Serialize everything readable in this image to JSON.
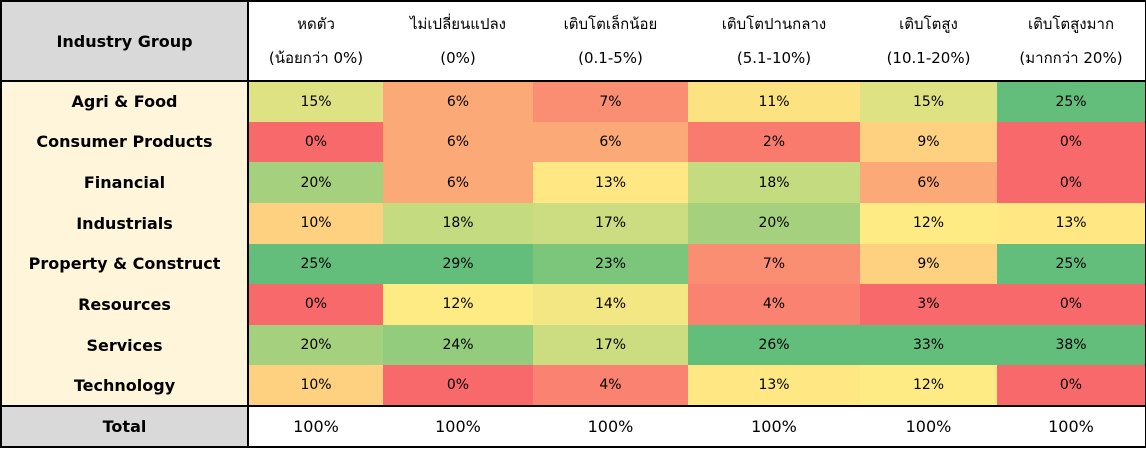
{
  "chart_data": {
    "type": "heatmap",
    "row_header": "Industry Group",
    "columns": [
      {
        "label": "หดตัว",
        "range": "(น้อยกว่า 0%)"
      },
      {
        "label": "ไม่เปลี่ยนแปลง",
        "range": "(0%)"
      },
      {
        "label": "เติบโตเล็กน้อย",
        "range": "(0.1-5%)"
      },
      {
        "label": "เติบโตปานกลาง",
        "range": "(5.1-10%)"
      },
      {
        "label": "เติบโตสูง",
        "range": "(10.1-20%)"
      },
      {
        "label": "เติบโตสูงมาก",
        "range": "(มากกว่า 20%)"
      }
    ],
    "rows": [
      {
        "label": "Agri & Food",
        "values": [
          "15%",
          "6%",
          "7%",
          "11%",
          "15%",
          "25%"
        ]
      },
      {
        "label": "Consumer Products",
        "values": [
          "0%",
          "6%",
          "6%",
          "2%",
          "9%",
          "0%"
        ]
      },
      {
        "label": "Financial",
        "values": [
          "20%",
          "6%",
          "13%",
          "18%",
          "6%",
          "0%"
        ]
      },
      {
        "label": "Industrials",
        "values": [
          "10%",
          "18%",
          "17%",
          "20%",
          "12%",
          "13%"
        ]
      },
      {
        "label": "Property & Construct",
        "values": [
          "25%",
          "29%",
          "23%",
          "7%",
          "9%",
          "25%"
        ]
      },
      {
        "label": "Resources",
        "values": [
          "0%",
          "12%",
          "14%",
          "4%",
          "3%",
          "0%"
        ]
      },
      {
        "label": "Services",
        "values": [
          "20%",
          "24%",
          "17%",
          "26%",
          "33%",
          "38%"
        ]
      },
      {
        "label": "Technology",
        "values": [
          "10%",
          "0%",
          "4%",
          "13%",
          "12%",
          "0%"
        ]
      }
    ],
    "total": {
      "label": "Total",
      "values": [
        "100%",
        "100%",
        "100%",
        "100%",
        "100%",
        "100%"
      ]
    },
    "colors": {
      "0%": "#f8696b",
      "2%": "#f97b6e",
      "3%": "#f8696b",
      "4%": "#f98370",
      "6%": "#fbaa77",
      "7%": "#fa8e72",
      "9%": "#fdd17f",
      "10%": "#fdd17f",
      "11%": "#fde282",
      "12%": "#ffeb84",
      "13%": "#ffe884",
      "14%": "#f2e783",
      "15%": "#dfe282",
      "17%": "#cbdc81",
      "18%": "#c4db80",
      "20%": "#a5d17e",
      "23%": "#7cc67b",
      "24%": "#92cc7c",
      "25%": "#63be7b",
      "26%": "#63be7b",
      "29%": "#63be7b",
      "33%": "#63be7b",
      "38%": "#63be7b"
    }
  }
}
